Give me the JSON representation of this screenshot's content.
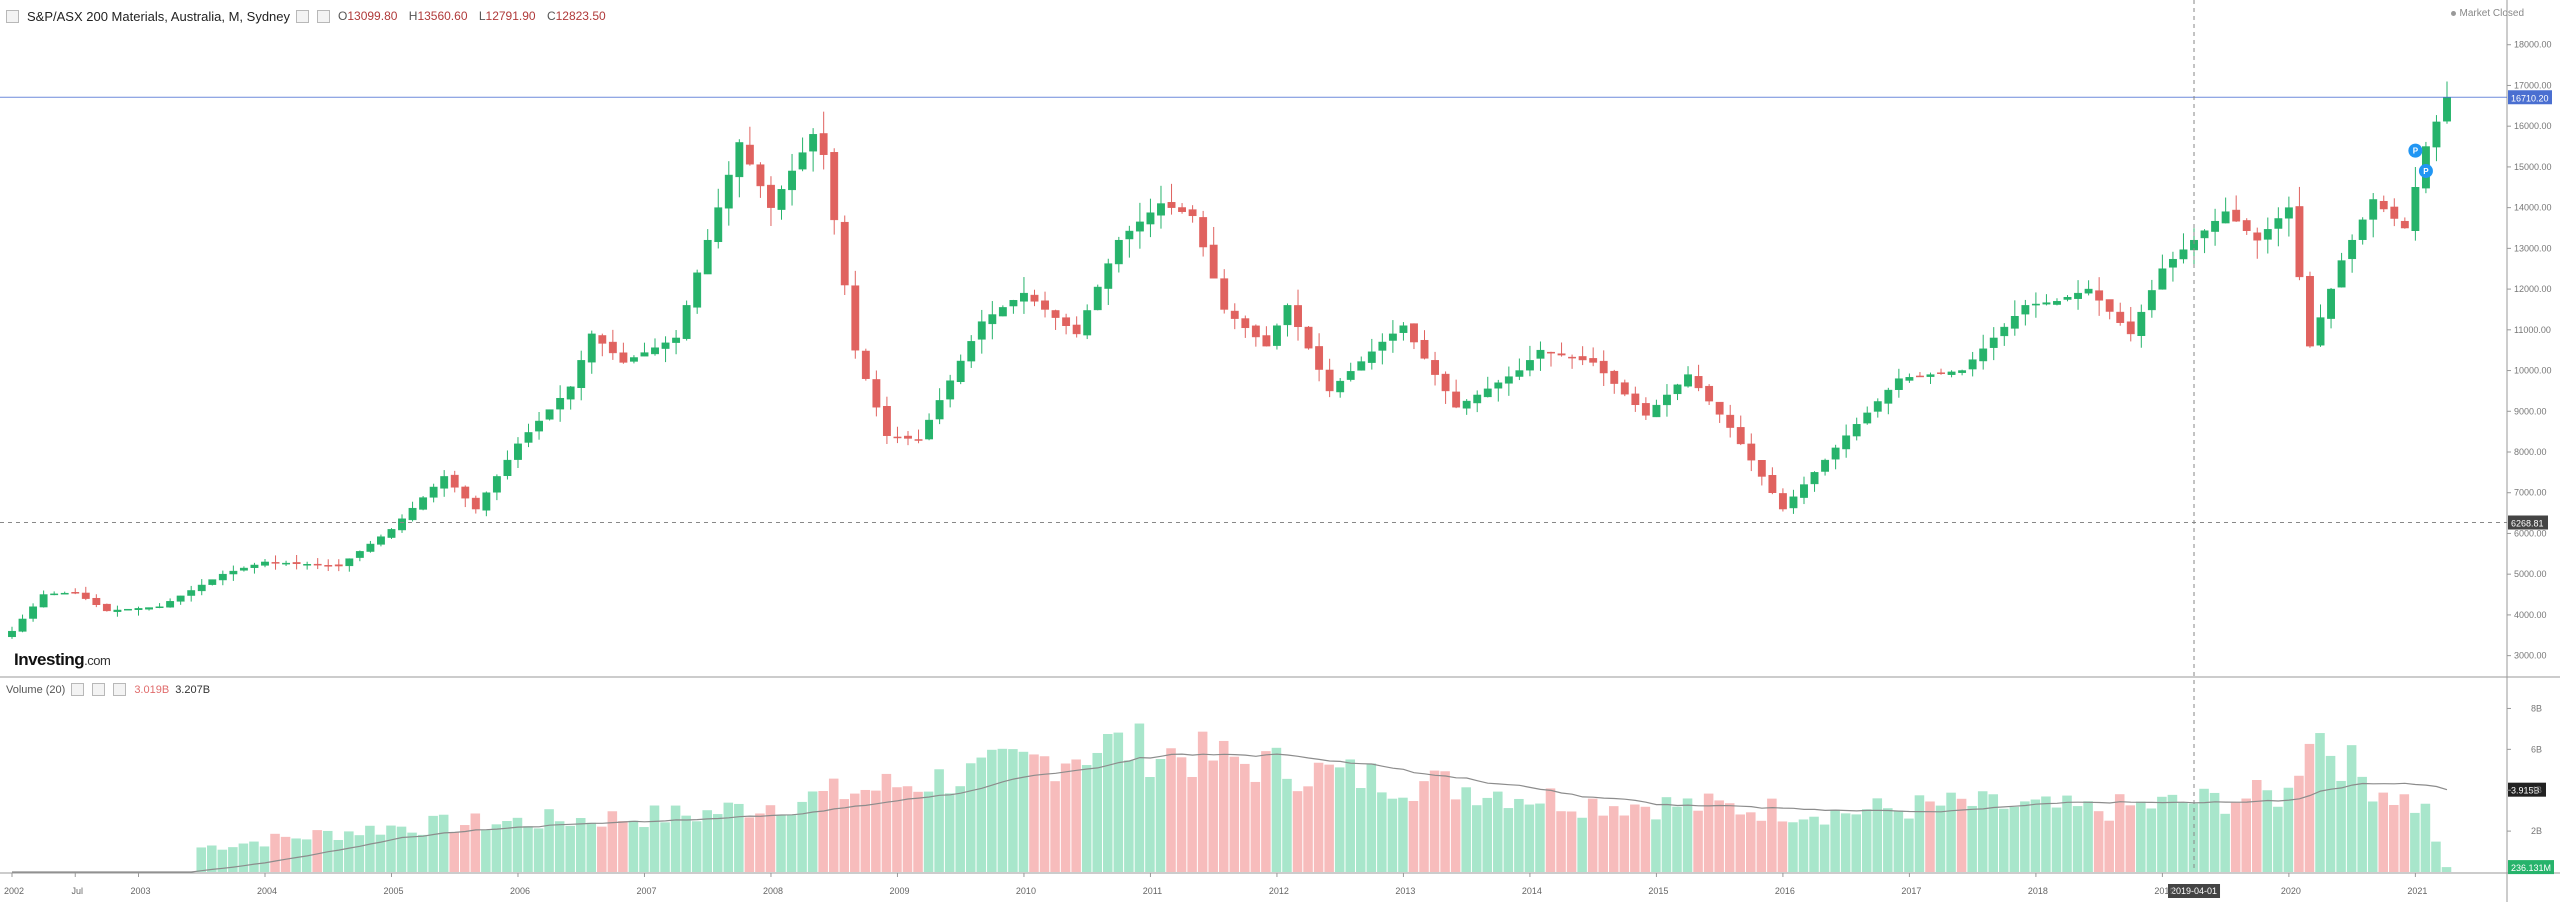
{
  "header": {
    "title": "S&P/ASX 200 Materials, Australia, M, Sydney",
    "ohlc": [
      {
        "label": "O",
        "value": "13099.80"
      },
      {
        "label": "H",
        "value": "13560.60"
      },
      {
        "label": "L",
        "value": "12791.90"
      },
      {
        "label": "C",
        "value": "12823.50"
      }
    ],
    "market_status": "Market Closed"
  },
  "logo": {
    "main": "Investing",
    "suffix": ".com"
  },
  "volume_header": {
    "label": "Volume (20)",
    "value1": "3.019B",
    "value2": "3.207B"
  },
  "price_axis": {
    "ticks": [
      "18000.00",
      "17000.00",
      "16000.00",
      "15000.00",
      "14000.00",
      "13000.00",
      "12000.00",
      "11000.00",
      "10000.00",
      "9000.00",
      "8000.00",
      "7000.00",
      "6000.00",
      "5000.00",
      "4000.00",
      "3000.00"
    ],
    "last_price_label": "16710.20",
    "crosshair_price_label": "6268.81"
  },
  "volume_axis": {
    "ticks": [
      "8B",
      "6B",
      "4B",
      "2B"
    ],
    "ma_label": "3.915B",
    "last_volume_label": "236.131M"
  },
  "time_axis": {
    "ticks": [
      "2002",
      "Jul",
      "2003",
      "2004",
      "2005",
      "2006",
      "2007",
      "2008",
      "2009",
      "2010",
      "2011",
      "2012",
      "2013",
      "2014",
      "2015",
      "2016",
      "2017",
      "2018",
      "2019",
      "2020",
      "2021"
    ],
    "crosshair_label": "2019-04-01"
  },
  "colors": {
    "up": "#26b36b",
    "down": "#e0625f",
    "vol_up": "#a8e6cb",
    "vol_down": "#f7bcbc",
    "ma": "#8c8c8c",
    "price_line": "#4a6fd1"
  },
  "chart_data": {
    "type": "candlestick",
    "interval": "monthly",
    "yrange": [
      2500,
      19000
    ],
    "volume_yrange": [
      0,
      9
    ],
    "volume_unit": "B",
    "anchors": [
      {
        "date": "2002-01",
        "price": 3600
      },
      {
        "date": "2002-04",
        "price": 4500
      },
      {
        "date": "2002-07",
        "price": 4550
      },
      {
        "date": "2002-10",
        "price": 4100
      },
      {
        "date": "2003-03",
        "price": 4200
      },
      {
        "date": "2003-09",
        "price": 5000
      },
      {
        "date": "2004-01",
        "price": 5300
      },
      {
        "date": "2004-08",
        "price": 5200
      },
      {
        "date": "2005-01",
        "price": 6100
      },
      {
        "date": "2005-06",
        "price": 7400
      },
      {
        "date": "2005-09",
        "price": 6600
      },
      {
        "date": "2006-01",
        "price": 8200
      },
      {
        "date": "2006-06",
        "price": 9600
      },
      {
        "date": "2006-08",
        "price": 10900
      },
      {
        "date": "2006-11",
        "price": 10200
      },
      {
        "date": "2007-04",
        "price": 10800
      },
      {
        "date": "2007-10",
        "price": 15600
      },
      {
        "date": "2008-01",
        "price": 14000
      },
      {
        "date": "2008-05",
        "price": 15800
      },
      {
        "date": "2008-06",
        "price": 15300
      },
      {
        "date": "2008-09",
        "price": 10500
      },
      {
        "date": "2008-12",
        "price": 8400
      },
      {
        "date": "2009-03",
        "price": 8300
      },
      {
        "date": "2009-09",
        "price": 11200
      },
      {
        "date": "2010-01",
        "price": 11900
      },
      {
        "date": "2010-06",
        "price": 10900
      },
      {
        "date": "2010-10",
        "price": 13200
      },
      {
        "date": "2011-02",
        "price": 14100
      },
      {
        "date": "2011-05",
        "price": 13800
      },
      {
        "date": "2011-08",
        "price": 11500
      },
      {
        "date": "2011-12",
        "price": 10600
      },
      {
        "date": "2012-02",
        "price": 11600
      },
      {
        "date": "2012-06",
        "price": 9500
      },
      {
        "date": "2012-11",
        "price": 10700
      },
      {
        "date": "2013-01",
        "price": 11100
      },
      {
        "date": "2013-06",
        "price": 9100
      },
      {
        "date": "2013-12",
        "price": 10000
      },
      {
        "date": "2014-02",
        "price": 10500
      },
      {
        "date": "2014-07",
        "price": 10200
      },
      {
        "date": "2014-12",
        "price": 8900
      },
      {
        "date": "2015-04",
        "price": 9900
      },
      {
        "date": "2015-08",
        "price": 8600
      },
      {
        "date": "2016-01",
        "price": 6600
      },
      {
        "date": "2016-07",
        "price": 8400
      },
      {
        "date": "2016-12",
        "price": 9800
      },
      {
        "date": "2017-06",
        "price": 10000
      },
      {
        "date": "2017-12",
        "price": 11600
      },
      {
        "date": "2018-03",
        "price": 11700
      },
      {
        "date": "2018-06",
        "price": 12000
      },
      {
        "date": "2018-10",
        "price": 10900
      },
      {
        "date": "2019-01",
        "price": 12500
      },
      {
        "date": "2019-07",
        "price": 13900
      },
      {
        "date": "2019-10",
        "price": 13200
      },
      {
        "date": "2020-01",
        "price": 14000
      },
      {
        "date": "2020-03",
        "price": 10600
      },
      {
        "date": "2020-06",
        "price": 12700
      },
      {
        "date": "2020-09",
        "price": 14200
      },
      {
        "date": "2020-12",
        "price": 13500
      },
      {
        "date": "2021-02",
        "price": 15500
      },
      {
        "date": "2021-04",
        "price": 16710
      }
    ],
    "volume_anchors": [
      {
        "date": "2002-01",
        "volume": 0.0
      },
      {
        "date": "2003-06",
        "volume": 0.0
      },
      {
        "date": "2003-07",
        "volume": 1.2
      },
      {
        "date": "2005-01",
        "volume": 2.2
      },
      {
        "date": "2007-06",
        "volume": 2.8
      },
      {
        "date": "2008-10",
        "volume": 4.0
      },
      {
        "date": "2009-09",
        "volume": 4.8
      },
      {
        "date": "2010-09",
        "volume": 6.2
      },
      {
        "date": "2011-06",
        "volume": 5.6
      },
      {
        "date": "2012-06",
        "volume": 4.8
      },
      {
        "date": "2013-06",
        "volume": 4.2
      },
      {
        "date": "2014-06",
        "volume": 3.4
      },
      {
        "date": "2015-06",
        "volume": 3.2
      },
      {
        "date": "2016-06",
        "volume": 2.9
      },
      {
        "date": "2017-06",
        "volume": 3.3
      },
      {
        "date": "2018-06",
        "volume": 3.0
      },
      {
        "date": "2019-06",
        "volume": 3.5
      },
      {
        "date": "2020-01",
        "volume": 3.8
      },
      {
        "date": "2020-03",
        "volume": 7.2
      },
      {
        "date": "2020-08",
        "volume": 4.6
      },
      {
        "date": "2021-02",
        "volume": 3.0
      },
      {
        "date": "2021-04",
        "volume": 0.24
      }
    ],
    "last_price_line": 16710.2,
    "crosshair": {
      "price": 6268.81,
      "date": "2019-04-01"
    },
    "events": [
      {
        "date": "2021-01",
        "price": 15400,
        "label": "P"
      },
      {
        "date": "2021-02",
        "price": 14900,
        "label": "P"
      }
    ]
  }
}
